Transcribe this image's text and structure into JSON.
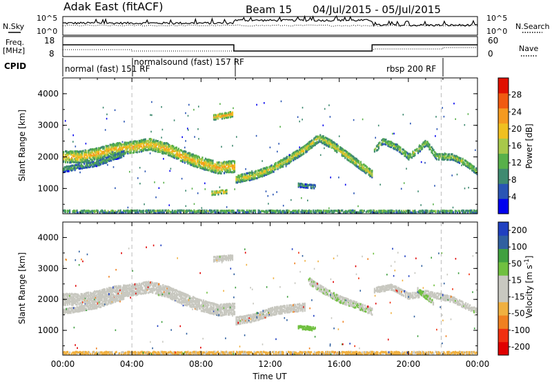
{
  "header": {
    "station": "Adak East (fitACF)",
    "beam": "Beam 15",
    "date_range": "04/Jul/2015 - 05/Jul/2015"
  },
  "noise_panel": {
    "left_label": "N.Sky",
    "right_label": "N.Search",
    "left_ticks": [
      "10^5",
      "10^0"
    ],
    "right_ticks": [
      "10^5",
      "10^0"
    ]
  },
  "freq_panel": {
    "left_label_top": "Freq.",
    "left_label_unit": "[MHz]",
    "right_label": "Nave",
    "left_ticks": [
      "18",
      "8"
    ],
    "right_ticks": [
      "60",
      "0"
    ]
  },
  "cpid_panel": {
    "label": "CPID",
    "modes": [
      {
        "text": "normal (fast)  151 RF"
      },
      {
        "text": "normalsound (fast)  157 RF"
      },
      {
        "text": "rbsp  200 RF"
      }
    ]
  },
  "colors": {
    "power_scale": [
      "#0000ee",
      "#2a55b4",
      "#3f8a70",
      "#58b04a",
      "#a8c84a",
      "#f0c020",
      "#f59a20",
      "#f05a10",
      "#e01000"
    ],
    "velocity_scale": [
      "#e00000",
      "#f03010",
      "#f08020",
      "#f0b040",
      "#c8c8c0",
      "#c8c8c0",
      "#70c040",
      "#40a040",
      "#3060a0",
      "#2040c0"
    ]
  },
  "chart_data": [
    {
      "type": "heatmap",
      "title": "",
      "ylabel": "Slant Range [km]",
      "xlabel": "",
      "ylim": [
        200,
        4500
      ],
      "yticks": [
        "1000",
        "2000",
        "3000",
        "4000"
      ],
      "xlim": [
        0,
        24
      ],
      "colorbar": {
        "label": "Power [dB]",
        "ticks": [
          "4",
          "8",
          "12",
          "16",
          "20",
          "24",
          "28"
        ],
        "range": [
          0,
          32
        ]
      },
      "echo_bands": [
        {
          "points": [
            [
              0,
              2000
            ],
            [
              1,
              2000
            ],
            [
              2,
              2100
            ],
            [
              3,
              2250
            ],
            [
              4,
              2300
            ],
            [
              5,
              2400
            ],
            [
              6,
              2250
            ],
            [
              7,
              2000
            ],
            [
              8,
              1800
            ],
            [
              9,
              1650
            ],
            [
              9.9,
              1700
            ]
          ],
          "width": 380,
          "power": 22
        },
        {
          "points": [
            [
              0,
              1600
            ],
            [
              1,
              1700
            ],
            [
              2,
              1800
            ],
            [
              3,
              2000
            ],
            [
              3.5,
              2100
            ]
          ],
          "width": 180,
          "power": 12
        },
        {
          "points": [
            [
              10,
              1300
            ],
            [
              11,
              1400
            ],
            [
              12,
              1600
            ],
            [
              13,
              1900
            ],
            [
              14,
              2250
            ],
            [
              14.8,
              2600
            ],
            [
              15.5,
              2400
            ],
            [
              16.5,
              2000
            ],
            [
              17.5,
              1600
            ],
            [
              17.9,
              1450
            ]
          ],
          "width": 260,
          "power": 19
        },
        {
          "points": [
            [
              18,
              2200
            ],
            [
              18.5,
              2500
            ],
            [
              19.3,
              2300
            ],
            [
              20,
              2000
            ],
            [
              20.5,
              2200
            ],
            [
              21,
              2450
            ],
            [
              21.6,
              2000
            ],
            [
              22.5,
              2000
            ],
            [
              23.3,
              1800
            ],
            [
              24,
              1500
            ]
          ],
          "width": 200,
          "power": 16
        },
        {
          "points": [
            [
              8.7,
              3250
            ],
            [
              9.8,
              3350
            ]
          ],
          "width": 180,
          "power": 24
        },
        {
          "points": [
            [
              13.6,
              1100
            ],
            [
              14.6,
              1050
            ]
          ],
          "width": 130,
          "power": 10
        },
        {
          "points": [
            [
              8.6,
              850
            ],
            [
              9.5,
              900
            ]
          ],
          "width": 140,
          "power": 21
        },
        {
          "points": [
            [
              0,
              270
            ],
            [
              24,
              270
            ]
          ],
          "width": 90,
          "power": 14
        }
      ]
    },
    {
      "type": "heatmap",
      "title": "",
      "ylabel": "Slant Range [km]",
      "xlabel": "Time UT",
      "ylim": [
        200,
        4500
      ],
      "yticks": [
        "1000",
        "2000",
        "3000",
        "4000"
      ],
      "xlim": [
        0,
        24
      ],
      "xticks": [
        "00:00",
        "04:00",
        "08:00",
        "12:00",
        "16:00",
        "20:00",
        "00:00"
      ],
      "colorbar": {
        "label": "Velocity [m s^-1]",
        "ticks": [
          "200",
          "100",
          "50",
          "15",
          "-15",
          "-50",
          "-100",
          "-200"
        ],
        "range": [
          -250,
          250
        ]
      },
      "echo_bands": [
        {
          "points": [
            [
              0,
              2000
            ],
            [
              1,
              2000
            ],
            [
              2,
              2100
            ],
            [
              3,
              2250
            ],
            [
              4,
              2300
            ],
            [
              5,
              2400
            ],
            [
              6,
              2250
            ],
            [
              7,
              2000
            ],
            [
              8,
              1800
            ],
            [
              9,
              1650
            ],
            [
              9.9,
              1700
            ]
          ],
          "width": 380,
          "velocity": 0
        },
        {
          "points": [
            [
              0,
              1600
            ],
            [
              1,
              1700
            ],
            [
              2,
              1800
            ],
            [
              3,
              2000
            ],
            [
              3.5,
              2100
            ]
          ],
          "width": 180,
          "velocity": 0
        },
        {
          "points": [
            [
              10,
              1300
            ],
            [
              11,
              1400
            ],
            [
              12,
              1600
            ],
            [
              13,
              1700
            ],
            [
              14,
              1750
            ]
          ],
          "width": 260,
          "velocity": 0
        },
        {
          "points": [
            [
              14.2,
              2600
            ],
            [
              15,
              2300
            ],
            [
              16,
              2000
            ],
            [
              17,
              1800
            ],
            [
              17.9,
              1600
            ]
          ],
          "width": 220,
          "velocity": 40
        },
        {
          "points": [
            [
              18,
              2300
            ],
            [
              19,
              2400
            ],
            [
              20,
              2100
            ],
            [
              21,
              2200
            ],
            [
              22.5,
              2000
            ],
            [
              24,
              1600
            ]
          ],
          "width": 200,
          "velocity": 0
        },
        {
          "points": [
            [
              20.5,
              2300
            ],
            [
              21.4,
              1900
            ]
          ],
          "width": 150,
          "velocity": 60
        },
        {
          "points": [
            [
              13.6,
              1100
            ],
            [
              14.6,
              1050
            ]
          ],
          "width": 130,
          "velocity": 80
        },
        {
          "points": [
            [
              8.7,
              3300
            ],
            [
              9.8,
              3350
            ]
          ],
          "width": 180,
          "velocity": 0
        },
        {
          "points": [
            [
              0,
              270
            ],
            [
              24,
              270
            ]
          ],
          "width": 90,
          "velocity": -60
        }
      ]
    }
  ]
}
